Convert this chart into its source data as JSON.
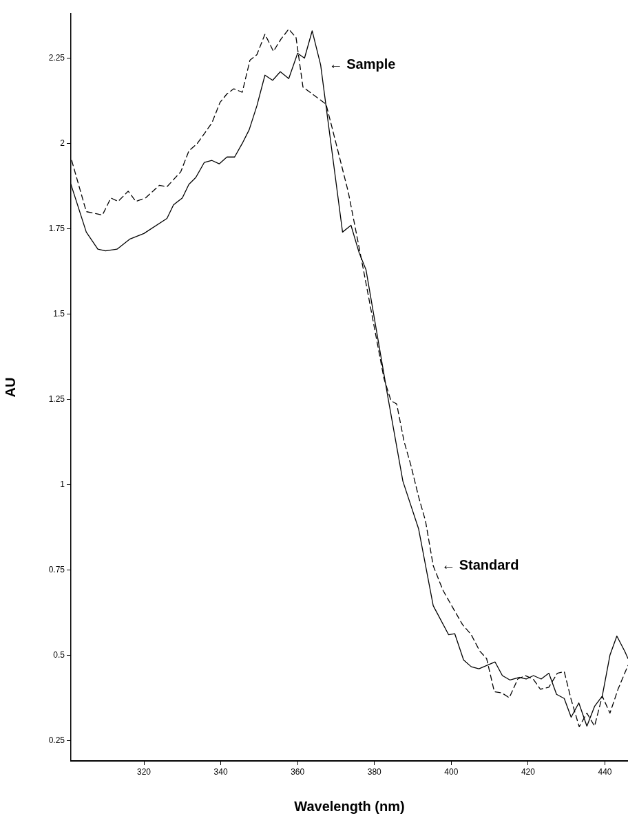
{
  "chart_data": {
    "type": "line",
    "xlabel": "Wavelength (nm)",
    "ylabel": "AU",
    "xlim": [
      301,
      446
    ],
    "ylim": [
      0.19,
      2.38
    ],
    "xticks": [
      320,
      340,
      360,
      380,
      400,
      420,
      440
    ],
    "yticks": [
      0.25,
      0.5,
      0.75,
      1,
      1.25,
      1.5,
      1.75,
      2,
      2.25
    ],
    "grid": false,
    "legend": false,
    "marker": "none",
    "series": [
      {
        "color": "#000000",
        "line_style": "solid",
        "x": [
          301,
          305,
          308,
          310,
          313,
          316.4,
          320,
          326,
          327.7,
          330,
          331.7,
          333.5,
          335.7,
          337.7,
          339.6,
          341.6,
          343.6,
          345.6,
          347.4,
          349.4,
          351.5,
          353.5,
          355.5,
          357.7,
          360,
          361.8,
          363.8,
          366,
          371.7,
          373.9,
          376,
          377.8,
          383.6,
          387.4,
          391.5,
          395.3,
          399.3,
          400.9,
          403.2,
          405.2,
          407.2,
          411.4,
          413.3,
          415.3,
          417.7,
          419.5,
          421.4,
          423.4,
          425.4,
          427.4,
          429.4,
          431.2,
          433.2,
          435.3,
          437.3,
          439.3,
          441.3,
          443.1,
          445.2,
          446
        ],
        "values": [
          1.88,
          1.74,
          1.69,
          1.685,
          1.69,
          1.72,
          1.736,
          1.78,
          1.82,
          1.84,
          1.88,
          1.9,
          1.944,
          1.95,
          1.94,
          1.96,
          1.96,
          2.0,
          2.04,
          2.11,
          2.2,
          2.185,
          2.21,
          2.19,
          2.264,
          2.25,
          2.33,
          2.23,
          1.74,
          1.76,
          1.68,
          1.63,
          1.25,
          1.01,
          0.87,
          0.645,
          0.56,
          0.563,
          0.486,
          0.466,
          0.46,
          0.48,
          0.44,
          0.427,
          0.435,
          0.43,
          0.44,
          0.43,
          0.447,
          0.385,
          0.373,
          0.318,
          0.36,
          0.292,
          0.35,
          0.38,
          0.5,
          0.556,
          0.51,
          0.49
        ]
      },
      {
        "color": "#000000",
        "line_style": "dashed",
        "x": [
          301.2,
          305,
          309.2,
          311.4,
          313.3,
          315.9,
          317.9,
          320.4,
          324,
          326,
          329.6,
          331.7,
          333.9,
          337.7,
          339.8,
          341.6,
          343.4,
          345.6,
          347.6,
          349.4,
          351.5,
          353.7,
          355.7,
          357.7,
          359.6,
          361.4,
          363.8,
          367.4,
          369,
          373.2,
          375.3,
          377.3,
          382.5,
          384.3,
          385.8,
          387.7,
          389.5,
          391.5,
          393.3,
          395.3,
          397.8,
          400.2,
          402.9,
          405.2,
          407.4,
          409.2,
          411.2,
          413.2,
          415.1,
          417.3,
          419.3,
          421.3,
          423.2,
          425.4,
          427.6,
          429.4,
          431.2,
          433.3,
          435.3,
          437.3,
          439.3,
          441.3,
          443.4,
          446
        ],
        "values": [
          1.95,
          1.8,
          1.79,
          1.84,
          1.83,
          1.86,
          1.83,
          1.84,
          1.877,
          1.873,
          1.917,
          1.978,
          2.0,
          2.06,
          2.12,
          2.145,
          2.16,
          2.15,
          2.244,
          2.26,
          2.32,
          2.27,
          2.306,
          2.335,
          2.31,
          2.165,
          2.145,
          2.115,
          2.045,
          1.857,
          1.736,
          1.62,
          1.31,
          1.246,
          1.236,
          1.127,
          1.056,
          0.964,
          0.893,
          0.762,
          0.691,
          0.643,
          0.59,
          0.56,
          0.512,
          0.49,
          0.393,
          0.389,
          0.375,
          0.43,
          0.44,
          0.43,
          0.4,
          0.406,
          0.447,
          0.452,
          0.37,
          0.29,
          0.33,
          0.292,
          0.38,
          0.33,
          0.4,
          0.47
        ]
      }
    ],
    "annotations": [
      {
        "text": "← Sample",
        "x": 366,
        "y": 2.23
      },
      {
        "text": "← Standard",
        "x": 395.3,
        "y": 0.762
      }
    ]
  }
}
